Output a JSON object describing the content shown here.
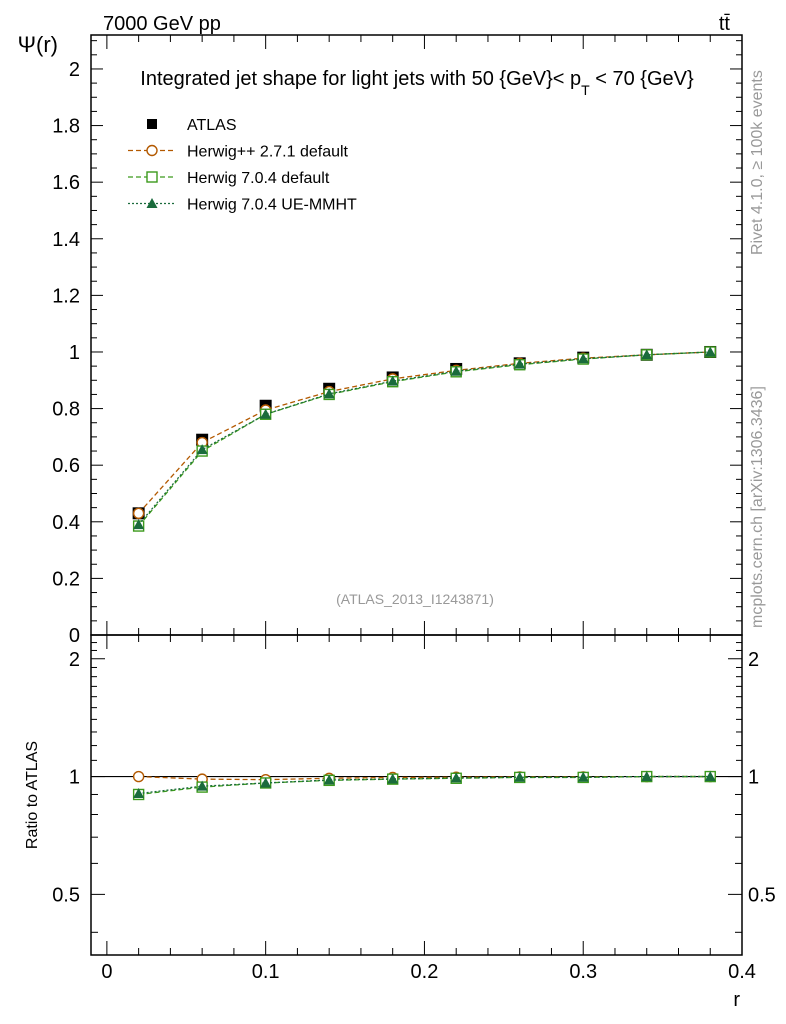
{
  "header": {
    "energy_label": "7000 GeV pp",
    "process_label": "tt̄"
  },
  "side_labels": {
    "rivet": "Rivet 4.1.0, ≥ 100k events",
    "mcplots": "mcplots.cern.ch [arXiv:1306.3436]"
  },
  "chart_data": [
    {
      "type": "line",
      "title": "Integrated jet shape for light jets with 50 {GeV}< p_T < 70 {GeV}",
      "title_parts": {
        "prefix": "Integrated jet shape for light jets with 50 {GeV}< p",
        "subscript": "T",
        "suffix": " < 70 {GeV}"
      },
      "analysis_id": "(ATLAS_2013_I1243871)",
      "ylabel": "Ψ(r)",
      "xlabel": "r",
      "xlim": [
        -0.01,
        0.4
      ],
      "ylim": [
        0,
        2.12
      ],
      "y_ticks": [
        0,
        0.2,
        0.4,
        0.6,
        0.8,
        1,
        1.2,
        1.4,
        1.6,
        1.8,
        2
      ],
      "y_tick_labels": [
        "0",
        "0.2",
        "0.4",
        "0.6",
        "0.8",
        "1",
        "1.2",
        "1.4",
        "1.6",
        "1.8",
        "2"
      ],
      "x": [
        0.02,
        0.06,
        0.1,
        0.14,
        0.18,
        0.22,
        0.26,
        0.3,
        0.34,
        0.38
      ],
      "series": [
        {
          "name": "ATLAS",
          "color": "#000000",
          "marker": "filled-square",
          "line": "none",
          "values": [
            0.43,
            0.69,
            0.81,
            0.87,
            0.91,
            0.94,
            0.96,
            0.98,
            0.99,
            1.0
          ]
        },
        {
          "name": "Herwig++ 2.7.1 default",
          "color": "#b35900",
          "marker": "open-circle",
          "line": "dashed",
          "values": [
            0.43,
            0.68,
            0.795,
            0.86,
            0.905,
            0.935,
            0.96,
            0.978,
            0.99,
            1.0
          ]
        },
        {
          "name": "Herwig 7.0.4 default",
          "color": "#3c9a1c",
          "marker": "open-square",
          "line": "dashed",
          "values": [
            0.385,
            0.65,
            0.78,
            0.85,
            0.895,
            0.93,
            0.955,
            0.975,
            0.99,
            1.0
          ]
        },
        {
          "name": "Herwig 7.0.4 UE-MMHT",
          "color": "#1a6b3c",
          "marker": "filled-triangle",
          "line": "dotted",
          "values": [
            0.39,
            0.655,
            0.78,
            0.852,
            0.897,
            0.932,
            0.957,
            0.976,
            0.99,
            1.0
          ]
        }
      ],
      "legend_position": "top-left"
    },
    {
      "type": "line",
      "ylabel": "Ratio to ATLAS",
      "xlabel": "r",
      "xlim": [
        -0.01,
        0.4
      ],
      "ylim": [
        0.35,
        2.3
      ],
      "y_ticks": [
        0.5,
        1,
        2
      ],
      "y_tick_labels": [
        "0.5",
        "1",
        "2"
      ],
      "x_ticks": [
        0,
        0.1,
        0.2,
        0.3,
        0.4
      ],
      "x_tick_labels": [
        "0",
        "0.1",
        "0.2",
        "0.3",
        "0.4"
      ],
      "x": [
        0.02,
        0.06,
        0.1,
        0.14,
        0.18,
        0.22,
        0.26,
        0.3,
        0.34,
        0.38
      ],
      "reference_line": 1,
      "series": [
        {
          "name": "Herwig++ 2.7.1 default",
          "color": "#b35900",
          "marker": "open-circle",
          "line": "dashed",
          "values": [
            1.0,
            0.985,
            0.982,
            0.99,
            0.995,
            0.996,
            0.998,
            0.998,
            1.0,
            1.0
          ]
        },
        {
          "name": "Herwig 7.0.4 default",
          "color": "#3c9a1c",
          "marker": "open-square",
          "line": "dashed",
          "values": [
            0.9,
            0.94,
            0.963,
            0.978,
            0.985,
            0.99,
            0.995,
            0.995,
            1.0,
            1.0
          ]
        },
        {
          "name": "Herwig 7.0.4 UE-MMHT",
          "color": "#1a6b3c",
          "marker": "filled-triangle",
          "line": "dotted",
          "values": [
            0.905,
            0.945,
            0.963,
            0.98,
            0.986,
            0.992,
            0.996,
            0.996,
            1.0,
            1.0
          ]
        }
      ]
    }
  ]
}
